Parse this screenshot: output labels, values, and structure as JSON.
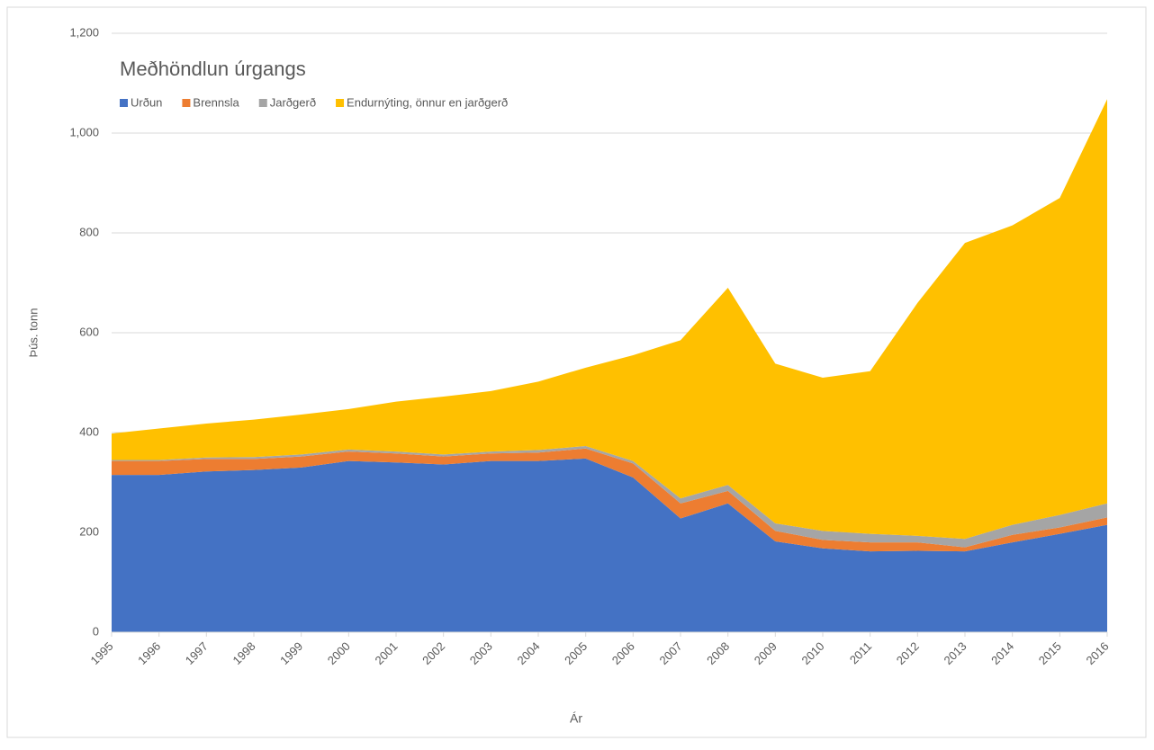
{
  "chart_data": {
    "type": "stacked_area",
    "title": "Meðhöndlun úrgangs",
    "x_label": "Ár",
    "y_label": "Þús. tonn",
    "categories": [
      "1995",
      "1996",
      "1997",
      "1998",
      "1999",
      "2000",
      "2001",
      "2002",
      "2003",
      "2004",
      "2005",
      "2006",
      "2007",
      "2008",
      "2009",
      "2010",
      "2011",
      "2012",
      "2013",
      "2014",
      "2015",
      "2016"
    ],
    "series": [
      {
        "name": "Urðun",
        "color": "#4472c4",
        "values": [
          315,
          315,
          322,
          325,
          330,
          343,
          340,
          336,
          343,
          343,
          348,
          310,
          228,
          258,
          182,
          168,
          162,
          163,
          162,
          180,
          197,
          215
        ]
      },
      {
        "name": "Brennsla",
        "color": "#ed7d31",
        "values": [
          28,
          28,
          25,
          22,
          22,
          19,
          18,
          16,
          15,
          17,
          20,
          28,
          30,
          25,
          21,
          17,
          18,
          17,
          8,
          15,
          13,
          15
        ]
      },
      {
        "name": "Jarðgerð",
        "color": "#a5a5a5",
        "values": [
          2,
          2,
          3,
          4,
          4,
          4,
          4,
          4,
          4,
          5,
          5,
          5,
          10,
          12,
          15,
          18,
          17,
          13,
          17,
          20,
          25,
          28
        ]
      },
      {
        "name": "Endurnýting, önnur en jarðgerð",
        "color": "#ffc000",
        "values": [
          53,
          63,
          68,
          75,
          80,
          81,
          100,
          116,
          121,
          137,
          157,
          212,
          317,
          395,
          320,
          307,
          326,
          467,
          593,
          600,
          635,
          810
        ]
      }
    ],
    "ylim": [
      0,
      1200
    ],
    "yticks": [
      0,
      200,
      400,
      600,
      800,
      {
        "value": 1000,
        "label": "1,000"
      },
      {
        "value": 1200,
        "label": "1,200"
      }
    ],
    "grid": true
  }
}
